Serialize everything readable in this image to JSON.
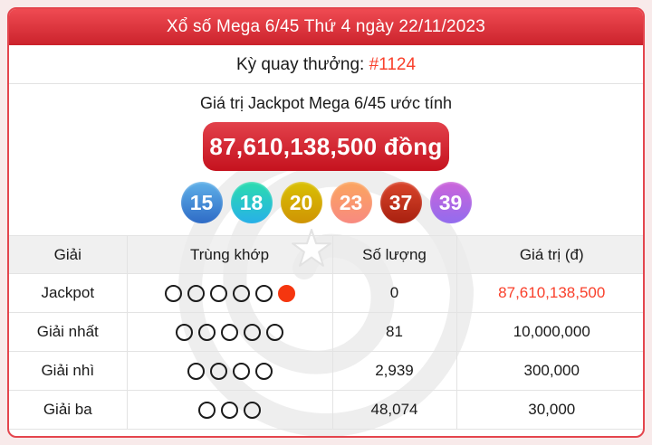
{
  "header": {
    "title": "Xổ số Mega 6/45 Thứ 4 ngày 22/11/2023"
  },
  "draw": {
    "label": "Kỳ quay thưởng: ",
    "number": "#1124"
  },
  "jackpot": {
    "caption": "Giá trị Jackpot Mega 6/45 ước tính",
    "amount": "87,610,138,500 đồng"
  },
  "balls": [
    {
      "number": "15",
      "gradient_top": "#5fb0e8",
      "gradient_bottom": "#2e6bc6"
    },
    {
      "number": "18",
      "gradient_top": "#2bdcae",
      "gradient_bottom": "#27b0e8"
    },
    {
      "number": "20",
      "gradient_top": "#d9c004",
      "gradient_bottom": "#cf9404"
    },
    {
      "number": "23",
      "gradient_top": "#fba55f",
      "gradient_bottom": "#f88a80"
    },
    {
      "number": "37",
      "gradient_top": "#d9452c",
      "gradient_bottom": "#a8200f"
    },
    {
      "number": "39",
      "gradient_top": "#cc64da",
      "gradient_bottom": "#926cee"
    }
  ],
  "table": {
    "headers": [
      "Giải",
      "Trùng khớp",
      "Số lượng",
      "Giá trị (đ)"
    ],
    "rows": [
      {
        "prize": "Jackpot",
        "match_open": 5,
        "match_filled": 1,
        "count": "0",
        "value": "87,610,138,500",
        "value_color": "#f9402b"
      },
      {
        "prize": "Giải nhất",
        "match_open": 5,
        "match_filled": 0,
        "count": "81",
        "value": "10,000,000"
      },
      {
        "prize": "Giải nhì",
        "match_open": 4,
        "match_filled": 0,
        "count": "2,939",
        "value": "300,000"
      },
      {
        "prize": "Giải ba",
        "match_open": 3,
        "match_filled": 0,
        "count": "48,074",
        "value": "30,000"
      }
    ]
  },
  "colors": {
    "accent_red": "#e4454d",
    "highlight_red_text": "#f9402b",
    "jackpot_dot_red": "#f5360f",
    "page_background": "#f8eaea",
    "table_header_bg": "#f0f0f0"
  },
  "watermark": {
    "name": "vietlott-swirl-star-logo"
  }
}
